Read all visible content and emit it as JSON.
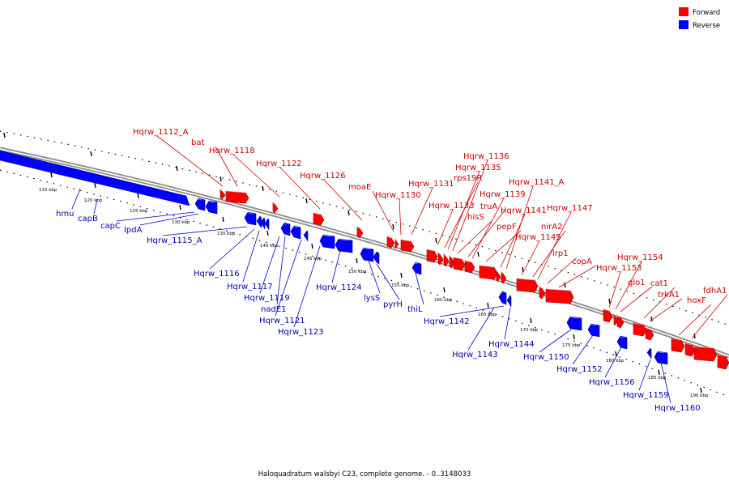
{
  "legend": {
    "forward": {
      "label": "Forward",
      "color": "#ff0000"
    },
    "reverse": {
      "label": "Reverse",
      "color": "#0000ff"
    }
  },
  "caption": "Haloquadratum walsbyi C23, complete genome. - 0..3148033",
  "ticks": [
    "115 kbp",
    "120 kbp",
    "125 kbp",
    "130 kbp",
    "135 kbp",
    "140 kbp",
    "145 kbp",
    "150 kbp",
    "155 kbp",
    "160 kbp",
    "165 kbp",
    "170 kbp",
    "175 kbp",
    "180 kbp",
    "185 kbp",
    "190 kbp"
  ],
  "forward_genes": [
    "Hqrw_1112_A",
    "bat",
    "Hqrw_1118",
    "Hqrw_1122",
    "Hqrw_1126",
    "moaE",
    "Hqrw_1130",
    "Hqrw_1131",
    "Hqrw_1133",
    "rps19R",
    "Hqrw_1135",
    "Hqrw_1136",
    "hisS",
    "truA",
    "Hqrw_1139",
    "pepF",
    "Hqrw_1141",
    "Hqrw_1141_A",
    "Hqrw_1145",
    "nirA2",
    "Hqrw_1147",
    "lrp1",
    "copA",
    "Hqrw_1153",
    "Hqrw_1154",
    "glo1",
    "cat1",
    "trkA1",
    "hoxF",
    "fdhA1"
  ],
  "reverse_genes": [
    "hmu",
    "capB",
    "capC",
    "lpdA",
    "Hqrw_1115_A",
    "Hqrw_1116",
    "Hqrw_1117",
    "Hqrw_1119",
    "nadE1",
    "Hqrw_1121",
    "Hqrw_1123",
    "Hqrw_1124",
    "lysS",
    "pyrH",
    "thiL",
    "Hqrw_1142",
    "Hqrw_1143",
    "Hqrw_1144",
    "Hqrw_1150",
    "Hqrw_1152",
    "Hqrw_1156",
    "Hqrw_1159",
    "Hqrw_1160"
  ]
}
